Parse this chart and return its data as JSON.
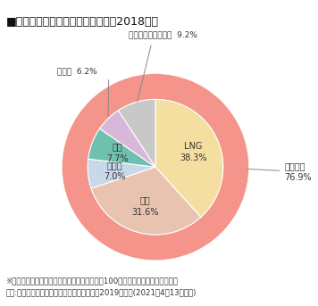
{
  "title": "■日本の発電電力量の電源別割合（2018年）",
  "title_fontsize": 9.0,
  "outer_color": "#F4948A",
  "inner_segments": [
    {
      "label": "LNG\n38.3%",
      "value": 38.3,
      "color": "#F5DFA0"
    },
    {
      "label": "石炭\n31.6%",
      "value": 31.6,
      "color": "#E8C4B0"
    },
    {
      "label": "石油等\n7.0%",
      "value": 7.0,
      "color": "#C8D8E8"
    },
    {
      "label": "水力\n7.7%",
      "value": 7.7,
      "color": "#70C0B0"
    },
    {
      "label": "原子力\n6.2%",
      "value": 6.2,
      "color": "#D8B8D8"
    },
    {
      "label": "地熱・新エネルギー\n9.2%",
      "value": 9.2,
      "color": "#C8C8C8"
    }
  ],
  "outer_annotation_text": "火力発電\n76.9%",
  "geothermal_outside_label": "地熱・新エネルギー  9.2%",
  "nuclear_outside_label": "原子力  6.2%",
  "footnote1": "※小数点以下は四捨五入しているため、合計が100にならない場合があります。",
  "footnote2": "資料:資源エネルギー庁「総合エネルギー統計2019年度」(2021年4月13日公表)",
  "footnote_fontsize": 6.2,
  "background_color": "#ffffff"
}
